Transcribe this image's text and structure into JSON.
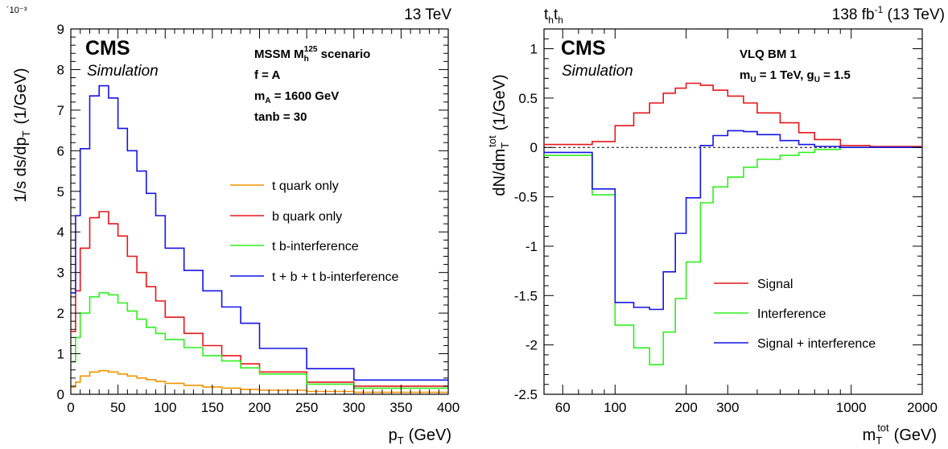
{
  "chart_data": [
    {
      "type": "line",
      "step": true,
      "energy_label": "13 TeV",
      "exponent_label": "´10⁻³",
      "cms": "CMS",
      "simulation": "Simulation",
      "info": {
        "line1_main": "MSSM M",
        "line1_sub": "h",
        "line1_sup": "125",
        "line1_tail": " scenario",
        "line2": "f = A",
        "line3_main": "m",
        "line3_sub": "A",
        "line3_tail": " = 1600 GeV",
        "line4": "tanb = 30"
      },
      "ylabel": "1/s ds/dp_T  (1/GeV)",
      "ylabel_main": "1/s ds/dp",
      "ylabel_sub": "T",
      "ylabel_units": "(1/GeV)",
      "xlabel_main": "p",
      "xlabel_sub": "T",
      "xlabel_units": "(GeV)",
      "xlim": [
        0,
        400
      ],
      "ylim": [
        0,
        9
      ],
      "x_ticks": [
        "0",
        "50",
        "100",
        "150",
        "200",
        "250",
        "300",
        "350",
        "400"
      ],
      "y_ticks": [
        "0",
        "1",
        "2",
        "3",
        "4",
        "5",
        "6",
        "7",
        "8",
        "9"
      ],
      "bin_edges": [
        0,
        5,
        10,
        20,
        30,
        40,
        50,
        60,
        70,
        80,
        90,
        100,
        120,
        140,
        160,
        180,
        200,
        250,
        300,
        400
      ],
      "series": [
        {
          "name": "t quark only",
          "color": "#f59400",
          "values": [
            0.18,
            0.3,
            0.45,
            0.55,
            0.58,
            0.55,
            0.5,
            0.45,
            0.4,
            0.36,
            0.32,
            0.27,
            0.22,
            0.18,
            0.15,
            0.12,
            0.1,
            0.07,
            0.05
          ]
        },
        {
          "name": "b quark only",
          "color": "#e8161b",
          "values": [
            1.55,
            2.55,
            3.6,
            4.35,
            4.5,
            4.2,
            3.9,
            3.4,
            3.0,
            2.65,
            2.3,
            1.9,
            1.5,
            1.2,
            0.95,
            0.75,
            0.55,
            0.3,
            0.2
          ]
        },
        {
          "name": "t b-interference",
          "color": "#2ff01e",
          "values": [
            0.8,
            1.4,
            2.0,
            2.4,
            2.5,
            2.45,
            2.25,
            2.05,
            1.85,
            1.65,
            1.5,
            1.35,
            1.15,
            0.95,
            0.82,
            0.65,
            0.5,
            0.25,
            0.15
          ]
        },
        {
          "name": "t + b + t b-interference",
          "color": "#1414e6",
          "values": [
            2.5,
            4.4,
            6.05,
            7.35,
            7.6,
            7.3,
            6.55,
            6.0,
            5.5,
            4.95,
            4.4,
            3.6,
            3.05,
            2.55,
            2.15,
            1.75,
            1.13,
            0.63,
            0.35
          ]
        }
      ],
      "legend_position": "center-right"
    },
    {
      "type": "line",
      "step": true,
      "xscale": "log",
      "top_left_main": "t",
      "top_left_sub": "h",
      "top_left_main2": "t",
      "top_left_sub2": "h",
      "lumi_main": "138 fb",
      "lumi_sup": "-1",
      "lumi_tail": " (13 TeV)",
      "cms": "CMS",
      "simulation": "Simulation",
      "info": {
        "line1": "VLQ BM 1",
        "line2_m": "m",
        "line2_sub": "U",
        "line2_mid": " = 1 TeV, g",
        "line2_sub2": "U",
        "line2_tail": " = 1.5"
      },
      "ylabel": "dN/dm_T^tot (1/GeV)",
      "ylabel_main": "dN/dm",
      "ylabel_sub": "T",
      "ylabel_sup": "tot",
      "ylabel_units": "(1/GeV)",
      "xlabel_main": "m",
      "xlabel_sub": "T",
      "xlabel_sup": "tot",
      "xlabel_units": "(GeV)",
      "xlim": [
        50,
        2000
      ],
      "ylim": [
        -2.5,
        1.2
      ],
      "x_ticks": [
        {
          "value": 60,
          "label": "60"
        },
        {
          "value": 100,
          "label": "100"
        },
        {
          "value": 200,
          "label": "200"
        },
        {
          "value": 300,
          "label": "300"
        },
        {
          "value": 1000,
          "label": "1000"
        },
        {
          "value": 2000,
          "label": "2000"
        }
      ],
      "y_ticks": [
        {
          "value": 1,
          "label": "1"
        },
        {
          "value": 0.5,
          "label": "0.5"
        },
        {
          "value": 0,
          "label": "0"
        },
        {
          "value": -0.5,
          "label": "-0.5"
        },
        {
          "value": -1,
          "label": "-1"
        },
        {
          "value": -1.5,
          "label": "-1.5"
        },
        {
          "value": -2,
          "label": "-2"
        },
        {
          "value": -2.5,
          "label": "-2.5"
        }
      ],
      "bin_edges": [
        50,
        80,
        100,
        120,
        140,
        160,
        180,
        200,
        230,
        260,
        300,
        350,
        400,
        500,
        600,
        700,
        900,
        1200,
        2000
      ],
      "series": [
        {
          "name": "Signal",
          "color": "#e8161b",
          "values": [
            0.03,
            0.06,
            0.22,
            0.35,
            0.45,
            0.55,
            0.6,
            0.65,
            0.63,
            0.58,
            0.52,
            0.45,
            0.35,
            0.25,
            0.15,
            0.08,
            0.02,
            0.01
          ]
        },
        {
          "name": "Interference",
          "color": "#2ff01e",
          "values": [
            -0.08,
            -0.48,
            -1.8,
            -2.03,
            -2.2,
            -1.87,
            -1.53,
            -1.16,
            -0.56,
            -0.4,
            -0.3,
            -0.2,
            -0.12,
            -0.08,
            -0.05,
            -0.02,
            0.0,
            0.0
          ]
        },
        {
          "name": "Signal + interference",
          "color": "#1414e6",
          "values": [
            -0.05,
            -0.42,
            -1.57,
            -1.62,
            -1.64,
            -1.26,
            -0.87,
            -0.51,
            0.02,
            0.12,
            0.17,
            0.16,
            0.13,
            0.07,
            0.03,
            0.01,
            0.0,
            0.0
          ]
        }
      ],
      "legend_position": "bottom-right"
    }
  ]
}
